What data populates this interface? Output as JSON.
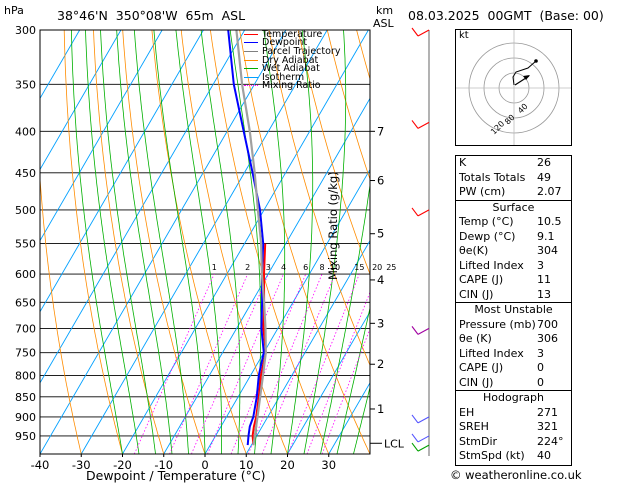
{
  "header": {
    "location": "38°46'N  350°08'W  65m  ASL",
    "datetime": "08.03.2025  00GMT  (Base: 00)"
  },
  "axes": {
    "y_left_label": "hPa",
    "y_right_label_top": "km",
    "y_right_label_sub": "ASL",
    "x_label": "Dewpoint / Temperature (°C)",
    "mixing_label": "Mixing Ratio (g/kg)",
    "lcl_label": "LCL",
    "hodo_label": "kt"
  },
  "legend": [
    {
      "label": "Temperature",
      "color": "#ff0000"
    },
    {
      "label": "Dewpoint",
      "color": "#0000ff"
    },
    {
      "label": "Parcel Trajectory",
      "color": "#808080"
    },
    {
      "label": "Dry Adiabat",
      "color": "#ff8c00"
    },
    {
      "label": "Wet Adiabat",
      "color": "#00b000"
    },
    {
      "label": "Isotherm",
      "color": "#00a0ff"
    },
    {
      "label": "Mixing Ratio",
      "color": "#ff00ff"
    }
  ],
  "indices": {
    "basic": [
      {
        "label": "K",
        "value": "26"
      },
      {
        "label": "Totals Totals",
        "value": "49"
      },
      {
        "label": "PW (cm)",
        "value": "2.07"
      }
    ],
    "surface_title": "Surface",
    "surface": [
      {
        "label": "Temp (°C)",
        "value": "10.5"
      },
      {
        "label": "Dewp (°C)",
        "value": "9.1"
      },
      {
        "label": "θe(K)",
        "value": "304"
      },
      {
        "label": "Lifted Index",
        "value": "3"
      },
      {
        "label": "CAPE (J)",
        "value": "11"
      },
      {
        "label": "CIN (J)",
        "value": "13"
      }
    ],
    "mu_title": "Most Unstable",
    "most_unstable": [
      {
        "label": "Pressure (mb)",
        "value": "700"
      },
      {
        "label": "θe (K)",
        "value": "306"
      },
      {
        "label": "Lifted Index",
        "value": "3"
      },
      {
        "label": "CAPE (J)",
        "value": "0"
      },
      {
        "label": "CIN (J)",
        "value": "0"
      }
    ],
    "hodo_title": "Hodograph",
    "hodograph": [
      {
        "label": "EH",
        "value": "271"
      },
      {
        "label": "SREH",
        "value": "321"
      },
      {
        "label": "StmDir",
        "value": "224°"
      },
      {
        "label": "StmSpd (kt)",
        "value": "40"
      }
    ]
  },
  "credit": "© weatheronline.co.uk",
  "chart_data": {
    "type": "line",
    "title": "38°46'N  350°08'W  65m  ASL",
    "xlabel": "Dewpoint / Temperature (°C)",
    "ylabel": "hPa",
    "xlim": [
      -40,
      40
    ],
    "ylim": [
      1000,
      300
    ],
    "pressure_ticks": [
      300,
      350,
      400,
      450,
      500,
      550,
      600,
      650,
      700,
      750,
      800,
      850,
      900,
      950
    ],
    "x_ticks": [
      -40,
      -30,
      -20,
      -10,
      0,
      10,
      20,
      30
    ],
    "km_ticks": [
      {
        "label": "7",
        "p": 400
      },
      {
        "label": "6",
        "p": 460
      },
      {
        "label": "5",
        "p": 535
      },
      {
        "label": "4",
        "p": 610
      },
      {
        "label": "3",
        "p": 690
      },
      {
        "label": "2",
        "p": 775
      },
      {
        "label": "1",
        "p": 880
      }
    ],
    "lcl_p": 970,
    "mixing_ratios": [
      "1",
      "2",
      "3",
      "4",
      "6",
      "8",
      "10",
      "15",
      "20",
      "25"
    ],
    "series": [
      {
        "name": "Temperature",
        "color": "#ff0000",
        "p": [
          975,
          950,
          925,
          900,
          850,
          800,
          750,
          700,
          650,
          600,
          550
        ],
        "t": [
          10.5,
          9.0,
          8.0,
          7.2,
          5.0,
          2.5,
          0.5,
          -3.5,
          -7.0,
          -11.0,
          -15.0
        ]
      },
      {
        "name": "Dewpoint",
        "color": "#0000ff",
        "p": [
          975,
          950,
          925,
          900,
          850,
          800,
          750,
          700,
          650,
          600,
          550,
          500,
          450,
          400,
          350,
          300
        ],
        "t": [
          9.1,
          8.0,
          7.0,
          6.5,
          4.5,
          2.0,
          0.0,
          -4.0,
          -7.5,
          -11.5,
          -15.5,
          -21.0,
          -28.0,
          -36.0,
          -45.0,
          -54.0
        ]
      },
      {
        "name": "Parcel Trajectory",
        "color": "#a0a0a0",
        "p": [
          975,
          900,
          800,
          750,
          700,
          650,
          600,
          550,
          500,
          450,
          400,
          350,
          300
        ],
        "t": [
          10.5,
          7.5,
          3.0,
          0.5,
          -3.0,
          -7.0,
          -11.5,
          -16.0,
          -21.5,
          -27.5,
          -34.5,
          -43.0,
          -52.0
        ]
      }
    ]
  }
}
